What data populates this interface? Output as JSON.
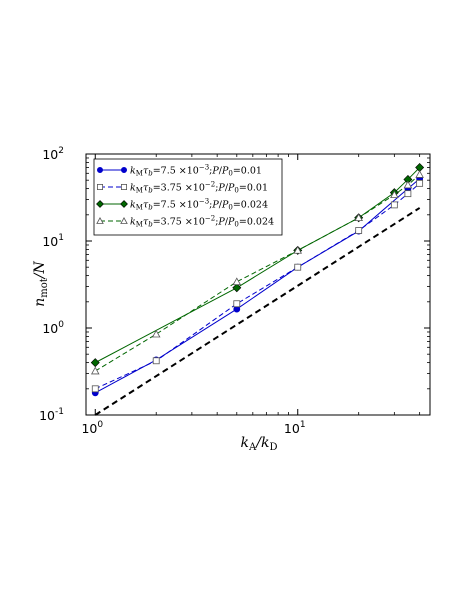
{
  "chart_data": {
    "type": "line",
    "title": "",
    "xlabel": "k_A/k_D",
    "ylabel": "n_mot/N",
    "xscale": "log",
    "yscale": "log",
    "xlim": [
      0.9,
      45
    ],
    "ylim": [
      0.1,
      100
    ],
    "xticks": [
      {
        "value": 1,
        "label": "10",
        "exp": "0"
      },
      {
        "value": 10,
        "label": "10",
        "exp": "1"
      }
    ],
    "yticks": [
      {
        "value": 0.1,
        "label": "10",
        "exp": "-1"
      },
      {
        "value": 1,
        "label": "10",
        "exp": "0"
      },
      {
        "value": 10,
        "label": "10",
        "exp": "1"
      },
      {
        "value": 100,
        "label": "10",
        "exp": "2"
      }
    ],
    "legend_position": "upper-left",
    "series": [
      {
        "name": "k_M τ_b = 7.5 × 10^-3 ; P/P_0 = 0.01",
        "color": "#0000cc",
        "marker": "circle",
        "filled": true,
        "dashed": false,
        "x": [
          1,
          2,
          5,
          10,
          20,
          35,
          40
        ],
        "y": [
          0.18,
          0.43,
          1.65,
          5.0,
          13.0,
          40,
          52
        ]
      },
      {
        "name": "k_M τ_b = 3.75 × 10^-2 ; P/P_0 = 0.01",
        "color": "#0000cc",
        "marker": "square",
        "filled": false,
        "dashed": true,
        "x": [
          1,
          2,
          5,
          10,
          20,
          30,
          35,
          40
        ],
        "y": [
          0.2,
          0.42,
          1.9,
          5.0,
          13.2,
          26,
          35,
          46
        ]
      },
      {
        "name": "k_M τ_b = 7.5 × 10^-3 ; P/P_0 = 0.024",
        "color": "#006600",
        "marker": "diamond",
        "filled": true,
        "dashed": false,
        "x": [
          1,
          5,
          10,
          20,
          30,
          35,
          40
        ],
        "y": [
          0.4,
          2.9,
          7.8,
          18.5,
          36,
          51,
          70
        ]
      },
      {
        "name": "k_M τ_b = 3.75 × 10^-2 ; P/P_0 = 0.024",
        "color": "#006600",
        "marker": "triangle",
        "filled": false,
        "dashed": true,
        "x": [
          1,
          2,
          5,
          10,
          20,
          30,
          35,
          40
        ],
        "y": [
          0.32,
          0.85,
          3.4,
          7.8,
          18.5,
          34,
          44,
          58
        ]
      }
    ],
    "reference_line": {
      "color": "#000000",
      "dashed": true,
      "x": [
        1,
        40
      ],
      "y": [
        0.1,
        24
      ]
    }
  }
}
